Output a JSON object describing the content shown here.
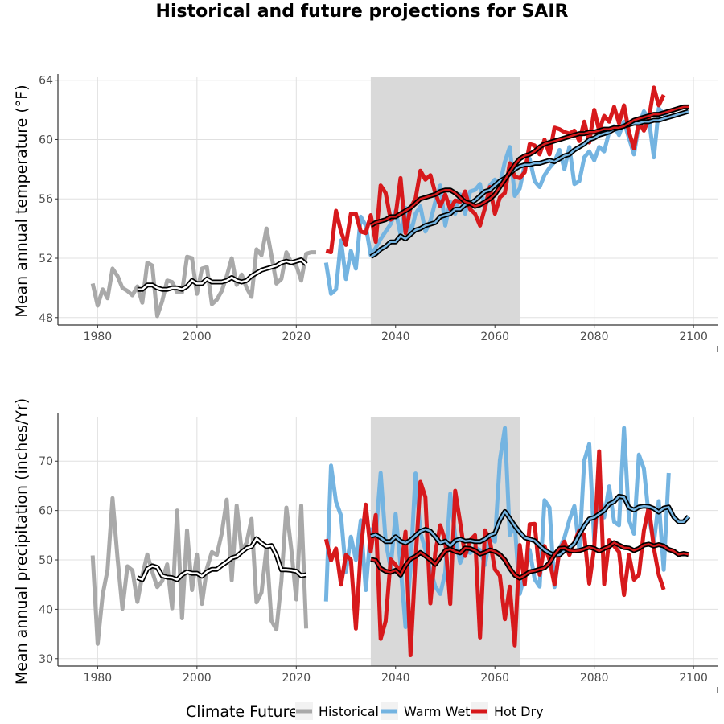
{
  "chart_data": [
    {
      "type": "line",
      "title": "Historical and future projections for SAIR",
      "ylabel": "Mean annual temperature (°F)",
      "xlim": [
        1972,
        2105
      ],
      "ylim": [
        47.5,
        64.2
      ],
      "x_ticks": [
        1980,
        2000,
        2020,
        2040,
        2060,
        2080,
        2100
      ],
      "y_ticks": [
        48,
        52,
        56,
        60,
        64
      ],
      "shaded_period": [
        2035,
        2065
      ],
      "series": [
        {
          "name": "Historical",
          "color": "#a9a9a9",
          "x_start": 1979,
          "values": [
            50.3,
            48.8,
            49.9,
            49.3,
            51.3,
            50.8,
            50.0,
            49.8,
            49.5,
            50.1,
            49.0,
            51.7,
            51.5,
            48.1,
            49.1,
            50.5,
            50.4,
            49.7,
            49.7,
            52.1,
            52.0,
            49.6,
            51.3,
            51.4,
            48.9,
            49.2,
            49.8,
            50.8,
            52.0,
            50.2,
            50.9,
            50.0,
            49.4,
            52.6,
            52.2,
            54.0,
            52.2,
            50.3,
            50.6,
            52.4,
            51.7,
            51.5,
            50.5,
            52.3,
            52.4,
            52.4
          ]
        },
        {
          "name": "Warm Wet",
          "color": "#74b4e1",
          "x_start": 2026,
          "values": [
            51.7,
            49.6,
            49.9,
            53.2,
            50.6,
            52.5,
            51.3,
            54.8,
            54.2,
            52.2,
            52.7,
            53.3,
            53.8,
            54.3,
            55.2,
            53.6,
            55.4,
            53.6,
            55.0,
            55.5,
            53.8,
            54.5,
            55.8,
            56.9,
            54.2,
            55.8,
            55.0,
            56.3,
            55.0,
            56.5,
            56.6,
            57.0,
            55.3,
            56.9,
            57.3,
            57.0,
            58.5,
            59.5,
            56.2,
            56.7,
            58.3,
            58.7,
            57.2,
            56.8,
            57.6,
            58.1,
            58.5,
            59.3,
            58.0,
            59.5,
            57.0,
            57.2,
            58.8,
            59.2,
            58.6,
            59.5,
            59.2,
            60.5,
            60.9,
            60.3,
            61.2,
            60.1,
            59.0,
            61.0,
            61.9,
            61.4,
            58.8,
            62.1,
            61.7,
            61.5
          ]
        },
        {
          "name": "Hot Dry",
          "color": "#d7191c",
          "x_start": 2026,
          "values": [
            52.5,
            52.4,
            55.2,
            53.8,
            52.9,
            55.0,
            55.0,
            53.8,
            53.7,
            54.9,
            53.1,
            56.9,
            56.4,
            54.6,
            54.9,
            57.4,
            53.7,
            55.4,
            56.0,
            57.9,
            57.3,
            57.6,
            56.4,
            55.5,
            56.3,
            55.3,
            55.9,
            55.8,
            56.5,
            55.3,
            55.0,
            54.2,
            55.4,
            56.8,
            55.0,
            56.1,
            56.4,
            58.4,
            57.5,
            57.4,
            57.8,
            59.7,
            59.6,
            59.0,
            60.0,
            59.0,
            60.8,
            60.7,
            60.5,
            60.4,
            60.6,
            59.9,
            61.2,
            59.8,
            62.0,
            60.6,
            61.6,
            61.2,
            62.2,
            61.1,
            62.3,
            60.5,
            59.4,
            61.2,
            60.6,
            61.4,
            63.5,
            62.3,
            63.0
          ]
        }
      ],
      "smoothed": [
        {
          "name": "Historical",
          "x_start": 1988,
          "values": [
            49.9,
            49.9,
            50.2,
            50.2,
            50.0,
            49.9,
            49.9,
            50.0,
            50.0,
            49.9,
            50.1,
            50.5,
            50.3,
            50.3,
            50.6,
            50.4,
            50.4,
            50.4,
            50.5,
            50.7,
            50.5,
            50.4,
            50.5,
            50.8,
            51.0,
            51.2,
            51.3,
            51.4,
            51.5,
            51.7,
            51.8,
            51.7,
            51.8,
            51.9,
            51.6
          ]
        },
        {
          "name": "Warm Wet",
          "x_start": 2035,
          "values": [
            52.1,
            52.3,
            52.6,
            52.8,
            53.1,
            53.1,
            53.5,
            53.3,
            53.6,
            53.9,
            54.0,
            54.2,
            54.3,
            54.4,
            54.8,
            54.9,
            55.0,
            55.3,
            55.3,
            55.6,
            55.7,
            55.9,
            56.2,
            56.5,
            56.6,
            56.9,
            57.2,
            57.4,
            57.7,
            58.0,
            58.2,
            58.3,
            58.3,
            58.4,
            58.4,
            58.5,
            58.6,
            58.5,
            58.7,
            58.9,
            59.0,
            59.3,
            59.5,
            59.7,
            60.0,
            60.1,
            60.3,
            60.4,
            60.5,
            60.7,
            60.8,
            60.9,
            61.0,
            61.1,
            61.1,
            61.2,
            61.2,
            61.3,
            61.3,
            61.4,
            61.5,
            61.6,
            61.7,
            61.8,
            61.9
          ]
        },
        {
          "name": "Hot Dry",
          "x_start": 2035,
          "values": [
            54.2,
            54.4,
            54.5,
            54.6,
            54.8,
            54.8,
            55.0,
            55.2,
            55.4,
            55.7,
            56.0,
            56.1,
            56.2,
            56.3,
            56.5,
            56.6,
            56.6,
            56.4,
            56.1,
            55.8,
            55.7,
            55.5,
            55.6,
            55.8,
            56.0,
            56.3,
            56.8,
            57.3,
            57.8,
            58.3,
            58.7,
            58.9,
            59.0,
            59.2,
            59.5,
            59.7,
            59.8,
            59.9,
            60.0,
            60.1,
            60.2,
            60.3,
            60.4,
            60.4,
            60.5,
            60.5,
            60.6,
            60.7,
            60.7,
            60.8,
            60.8,
            60.9,
            61.1,
            61.3,
            61.4,
            61.5,
            61.6,
            61.7,
            61.7,
            61.8,
            61.9,
            62.0,
            62.1,
            62.2,
            62.2
          ]
        }
      ]
    },
    {
      "type": "line",
      "ylabel": "Mean annual precipitation (inches/Yr)",
      "xlim": [
        1972,
        2105
      ],
      "ylim": [
        28.5,
        79
      ],
      "x_ticks": [
        1980,
        2000,
        2020,
        2040,
        2060,
        2080,
        2100
      ],
      "y_ticks": [
        30,
        40,
        50,
        60,
        70
      ],
      "shaded_period": [
        2035,
        2065
      ],
      "series": [
        {
          "name": "Historical",
          "color": "#a9a9a9",
          "x_start": 1979,
          "values": [
            50.9,
            33.0,
            42.9,
            48.0,
            62.5,
            50.4,
            40.1,
            48.7,
            47.9,
            41.5,
            46.8,
            51.1,
            47.6,
            44.5,
            45.7,
            49.1,
            40.2,
            60.0,
            38.2,
            56.0,
            43.9,
            51.1,
            41.1,
            48.3,
            51.6,
            51.0,
            55.4,
            62.2,
            45.9,
            61.0,
            51.8,
            53.5,
            58.3,
            41.4,
            43.4,
            52.5,
            37.7,
            35.9,
            45.7,
            60.6,
            52.2,
            42.0,
            61.0,
            36.1
          ]
        },
        {
          "name": "Warm Wet",
          "color": "#74b4e1",
          "x_start": 2026,
          "values": [
            41.6,
            69.1,
            61.8,
            59.0,
            47.6,
            54.7,
            50.0,
            58.0,
            43.9,
            56.2,
            55.0,
            67.6,
            53.8,
            48.3,
            59.3,
            49.0,
            36.4,
            48.3,
            67.5,
            55.5,
            52.0,
            48.0,
            44.6,
            43.1,
            47.5,
            63.4,
            54.8,
            49.4,
            52.0,
            51.4,
            52.5,
            52.0,
            49.0,
            54.7,
            53.7,
            70.2,
            76.7,
            55.0,
            57.2,
            43.1,
            47.0,
            52.0,
            46.1,
            44.6,
            62.1,
            60.6,
            44.5,
            52.2,
            54.5,
            58.1,
            60.9,
            52.0,
            70.1,
            73.5,
            53.7,
            64.6,
            58.6,
            64.9,
            57.7,
            57.0,
            76.7,
            58.1,
            55.3,
            71.3,
            68.5,
            58.7,
            53.4,
            61.9,
            48.0,
            67.6
          ]
        },
        {
          "name": "Hot Dry",
          "color": "#d7191c",
          "x_start": 2026,
          "values": [
            54.2,
            49.9,
            52.3,
            45.0,
            51.0,
            50.0,
            36.1,
            52.1,
            61.2,
            51.7,
            59.1,
            34.0,
            37.6,
            50.1,
            49.0,
            47.5,
            55.7,
            30.7,
            50.0,
            65.8,
            62.7,
            41.2,
            51.5,
            57.0,
            53.9,
            41.1,
            64.0,
            57.6,
            50.8,
            54.0,
            55.0,
            34.3,
            56.0,
            53.8,
            48.1,
            46.8,
            38.0,
            44.6,
            32.7,
            53.0,
            45.0,
            57.2,
            57.3,
            47.0,
            52.8,
            50.0,
            45.0,
            52.0,
            53.7,
            51.0,
            53.6,
            56.0,
            55.0,
            45.2,
            52.5,
            72.0,
            45.1,
            54.0,
            52.8,
            51.6,
            42.9,
            51.0,
            46.0,
            47.0,
            55.9,
            60.8,
            52.4,
            47.0,
            44.0
          ]
        }
      ],
      "smoothed": [
        {
          "name": "Historical",
          "x_start": 1988,
          "values": [
            46.4,
            46.0,
            48.2,
            48.8,
            48.5,
            46.8,
            46.5,
            46.4,
            46.0,
            47.0,
            47.6,
            47.3,
            47.3,
            46.7,
            47.6,
            48.1,
            48.1,
            48.9,
            49.6,
            50.4,
            50.7,
            51.6,
            52.4,
            52.7,
            54.3,
            53.4,
            52.7,
            52.9,
            51.0,
            48.0,
            48.0,
            47.9,
            47.7,
            46.8,
            47.0
          ]
        },
        {
          "name": "Warm Wet",
          "x_start": 2035,
          "values": [
            54.8,
            55.1,
            54.5,
            53.7,
            53.7,
            54.7,
            53.8,
            53.4,
            54.0,
            54.9,
            55.8,
            56.2,
            55.8,
            54.7,
            53.4,
            53.8,
            52.8,
            53.9,
            54.2,
            53.8,
            53.9,
            53.7,
            53.7,
            54.2,
            55.0,
            55.4,
            58.0,
            59.8,
            58.4,
            56.9,
            55.6,
            54.5,
            54.2,
            53.9,
            52.9,
            52.0,
            51.4,
            50.9,
            51.0,
            51.9,
            52.4,
            53.3,
            55.2,
            56.9,
            58.3,
            58.6,
            59.3,
            60.0,
            61.3,
            61.8,
            62.9,
            62.7,
            60.6,
            60.1,
            60.7,
            60.9,
            60.8,
            60.4,
            59.7,
            60.5,
            60.7,
            58.7,
            57.7,
            57.7,
            58.8
          ]
        },
        {
          "name": "Hot Dry",
          "x_start": 2035,
          "values": [
            50.1,
            49.9,
            48.3,
            47.7,
            47.5,
            47.9,
            46.9,
            48.9,
            50.2,
            50.7,
            51.5,
            50.8,
            50.0,
            49.1,
            50.5,
            51.9,
            52.2,
            51.7,
            51.4,
            52.4,
            52.3,
            51.9,
            51.2,
            51.5,
            52.0,
            51.7,
            51.1,
            50.0,
            48.3,
            46.9,
            46.3,
            46.9,
            47.6,
            47.8,
            48.1,
            48.4,
            49.4,
            51.1,
            52.3,
            52.4,
            51.9,
            51.8,
            51.9,
            52.2,
            52.6,
            52.3,
            51.8,
            52.3,
            52.7,
            53.5,
            53.0,
            52.5,
            52.4,
            51.9,
            52.3,
            53.0,
            53.2,
            52.8,
            53.1,
            52.8,
            52.1,
            51.8,
            51.1,
            51.3,
            51.1
          ]
        }
      ]
    }
  ],
  "legend": {
    "title": "Climate Future",
    "items": [
      {
        "name": "Historical",
        "color": "#a9a9a9"
      },
      {
        "name": "Warm Wet",
        "color": "#74b4e1"
      },
      {
        "name": "Hot Dry",
        "color": "#d7191c"
      }
    ]
  }
}
